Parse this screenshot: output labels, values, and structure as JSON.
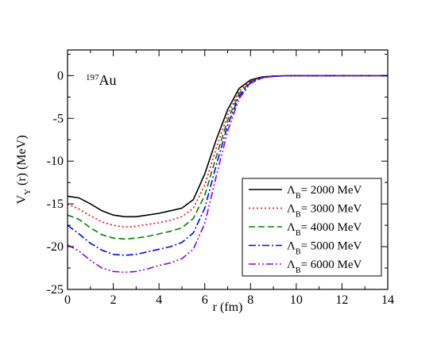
{
  "chart_data": {
    "type": "line",
    "xlabel": "r (fm)",
    "ylabel": {
      "main": "V",
      "sub": "Y",
      "rest": " (r)  (MeV)"
    },
    "xlim": [
      0,
      14
    ],
    "ylim": [
      -25,
      3
    ],
    "xticks": [
      0,
      2,
      4,
      6,
      8,
      10,
      12,
      14
    ],
    "yticks": [
      0,
      -5,
      -10,
      -15,
      -20,
      -25
    ],
    "grid": false,
    "legend_position": "lower-right",
    "annotation": {
      "sup": "197",
      "text": "Au"
    },
    "series": [
      {
        "label": {
          "sym": "Λ",
          "sub": "B",
          "rest": "= 2000 MeV"
        },
        "color": "#000000",
        "dash": "",
        "x": [
          0,
          0.5,
          1,
          1.5,
          2,
          2.5,
          3,
          3.5,
          4,
          4.5,
          5,
          5.5,
          6,
          6.5,
          7,
          7.5,
          8,
          8.5,
          9,
          9.5,
          10,
          11,
          12,
          13,
          14
        ],
        "y": [
          -14.1,
          -14.3,
          -15.0,
          -15.8,
          -16.3,
          -16.5,
          -16.5,
          -16.3,
          -16.1,
          -15.8,
          -15.5,
          -14.5,
          -11.5,
          -7.5,
          -4.0,
          -1.5,
          -0.5,
          -0.15,
          -0.05,
          -0.02,
          0,
          0,
          0,
          0,
          0
        ]
      },
      {
        "label": {
          "sym": "Λ",
          "sub": "B",
          "rest": "= 3000 MeV"
        },
        "color": "#ff0000",
        "dash": "2,3",
        "x": [
          0,
          0.5,
          1,
          1.5,
          2,
          2.5,
          3,
          3.5,
          4,
          4.5,
          5,
          5.5,
          6,
          6.5,
          7,
          7.5,
          8,
          8.5,
          9,
          9.5,
          10,
          11,
          12,
          13,
          14
        ],
        "y": [
          -15.0,
          -15.6,
          -16.4,
          -17.1,
          -17.5,
          -17.7,
          -17.6,
          -17.4,
          -17.2,
          -16.9,
          -16.5,
          -15.5,
          -12.8,
          -8.5,
          -4.6,
          -1.8,
          -0.6,
          -0.2,
          -0.06,
          -0.02,
          0,
          0,
          0,
          0,
          0
        ]
      },
      {
        "label": {
          "sym": "Λ",
          "sub": "B",
          "rest": "= 4000 MeV"
        },
        "color": "#008000",
        "dash": "8,4",
        "x": [
          0,
          0.5,
          1,
          1.5,
          2,
          2.5,
          3,
          3.5,
          4,
          4.5,
          5,
          5.5,
          6,
          6.5,
          7,
          7.5,
          8,
          8.5,
          9,
          9.5,
          10,
          11,
          12,
          13,
          14
        ],
        "y": [
          -16.3,
          -16.8,
          -17.8,
          -18.6,
          -19.0,
          -19.1,
          -19.0,
          -18.8,
          -18.5,
          -18.2,
          -17.8,
          -16.7,
          -14.0,
          -9.5,
          -5.2,
          -2.1,
          -0.7,
          -0.22,
          -0.07,
          -0.02,
          0,
          0,
          0,
          0,
          0
        ]
      },
      {
        "label": {
          "sym": "Λ",
          "sub": "B",
          "rest": "= 5000 MeV"
        },
        "color": "#0000ff",
        "dash": "9,3,2,3",
        "x": [
          0,
          0.5,
          1,
          1.5,
          2,
          2.5,
          3,
          3.5,
          4,
          4.5,
          5,
          5.5,
          6,
          6.5,
          7,
          7.5,
          8,
          8.5,
          9,
          9.5,
          10,
          11,
          12,
          13,
          14
        ],
        "y": [
          -17.5,
          -18.5,
          -19.6,
          -20.4,
          -20.9,
          -21.0,
          -20.9,
          -20.6,
          -20.3,
          -20.0,
          -19.5,
          -18.4,
          -15.5,
          -10.5,
          -5.8,
          -2.4,
          -0.8,
          -0.25,
          -0.08,
          -0.03,
          0,
          0,
          0,
          0,
          0
        ]
      },
      {
        "label": {
          "sym": "Λ",
          "sub": "B",
          "rest": "= 6000 MeV"
        },
        "color": "#9400d3",
        "dash": "9,3,2,3,2,3",
        "x": [
          0,
          0.5,
          1,
          1.5,
          2,
          2.5,
          3,
          3.5,
          4,
          4.5,
          5,
          5.5,
          6,
          6.5,
          7,
          7.5,
          8,
          8.5,
          9,
          9.5,
          10,
          11,
          12,
          13,
          14
        ],
        "y": [
          -19.8,
          -20.5,
          -21.6,
          -22.5,
          -22.9,
          -23.0,
          -22.9,
          -22.6,
          -22.2,
          -21.9,
          -21.4,
          -20.3,
          -17.3,
          -11.8,
          -6.5,
          -2.7,
          -0.9,
          -0.28,
          -0.09,
          -0.03,
          0,
          0,
          0,
          0,
          0
        ]
      }
    ]
  }
}
